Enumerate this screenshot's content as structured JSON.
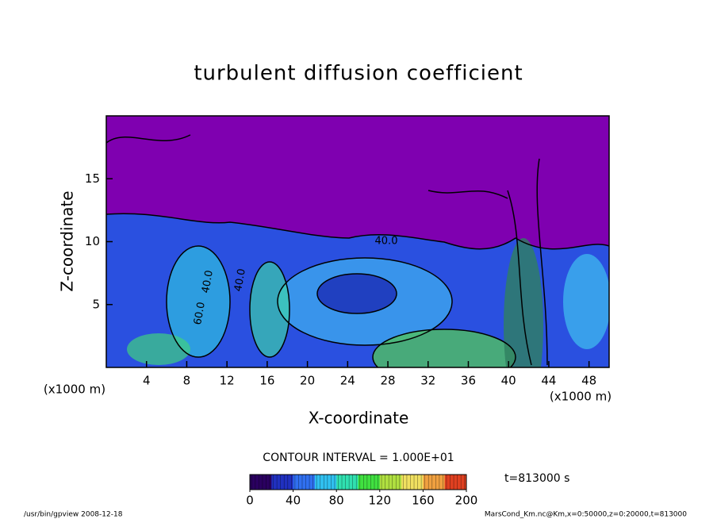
{
  "chart_data": {
    "type": "contour",
    "title": "turbulent diffusion coefficient",
    "xlabel": "X-coordinate",
    "ylabel": "Z-coordinate",
    "x_unit_left": "(x1000 m)",
    "x_unit_right": "(x1000 m)",
    "xlim": [
      0,
      50
    ],
    "xticks": [
      4,
      8,
      12,
      16,
      20,
      24,
      28,
      32,
      36,
      40,
      44,
      48
    ],
    "ylim": [
      0,
      20
    ],
    "yticks": [
      5,
      10,
      15
    ],
    "contour_labels": [
      "40.0",
      "40.0",
      "40.0",
      "60.0"
    ],
    "contour_interval": "CONTOUR INTERVAL = 1.000E+01",
    "time_label": "t=813000 s",
    "clim": [
      0,
      200
    ],
    "cticks": [
      0,
      40,
      80,
      120,
      160,
      200
    ],
    "colormap": [
      "#2a0060",
      "#2030c0",
      "#3070f0",
      "#30c0f0",
      "#30e0b0",
      "#40e040",
      "#b0e040",
      "#f0e060",
      "#f0a040",
      "#e04020"
    ],
    "footer_left": "/usr/bin/gpview  2008-12-18",
    "footer_right": "MarsCond_Km.nc@Km,x=0:50000,z=0:20000,t=813000"
  }
}
